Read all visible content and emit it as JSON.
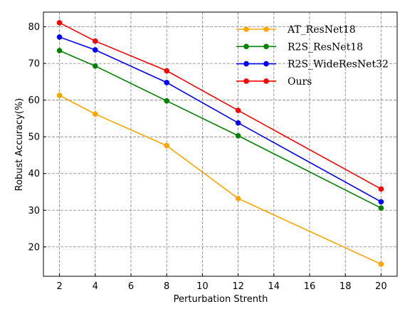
{
  "chart_data": {
    "type": "line",
    "title": "",
    "xlabel": "Perturbation Strenth",
    "ylabel": "Robust Accuracy(%)",
    "xlim": [
      1.1,
      20.9
    ],
    "ylim": [
      12,
      84
    ],
    "xticks": [
      2,
      4,
      6,
      8,
      10,
      12,
      14,
      16,
      18,
      20
    ],
    "yticks": [
      20,
      30,
      40,
      50,
      60,
      70,
      80
    ],
    "grid": true,
    "legend_position": "top-right",
    "x": [
      2,
      4,
      8,
      12,
      20
    ],
    "series": [
      {
        "name": "AT_ResNet18",
        "color": "#ffa500",
        "values": [
          61.3,
          56.2,
          47.6,
          33.2,
          15.3
        ]
      },
      {
        "name": "R2S_ResNet18",
        "color": "#008000",
        "values": [
          73.5,
          69.3,
          59.8,
          50.3,
          30.6
        ]
      },
      {
        "name": "R2S_WideResNet32",
        "color": "#0000ff",
        "values": [
          77.2,
          73.7,
          64.8,
          53.8,
          32.3
        ]
      },
      {
        "name": "Ours",
        "color": "#ff0000",
        "values": [
          81.1,
          76.1,
          68.0,
          57.2,
          35.8
        ]
      }
    ]
  }
}
